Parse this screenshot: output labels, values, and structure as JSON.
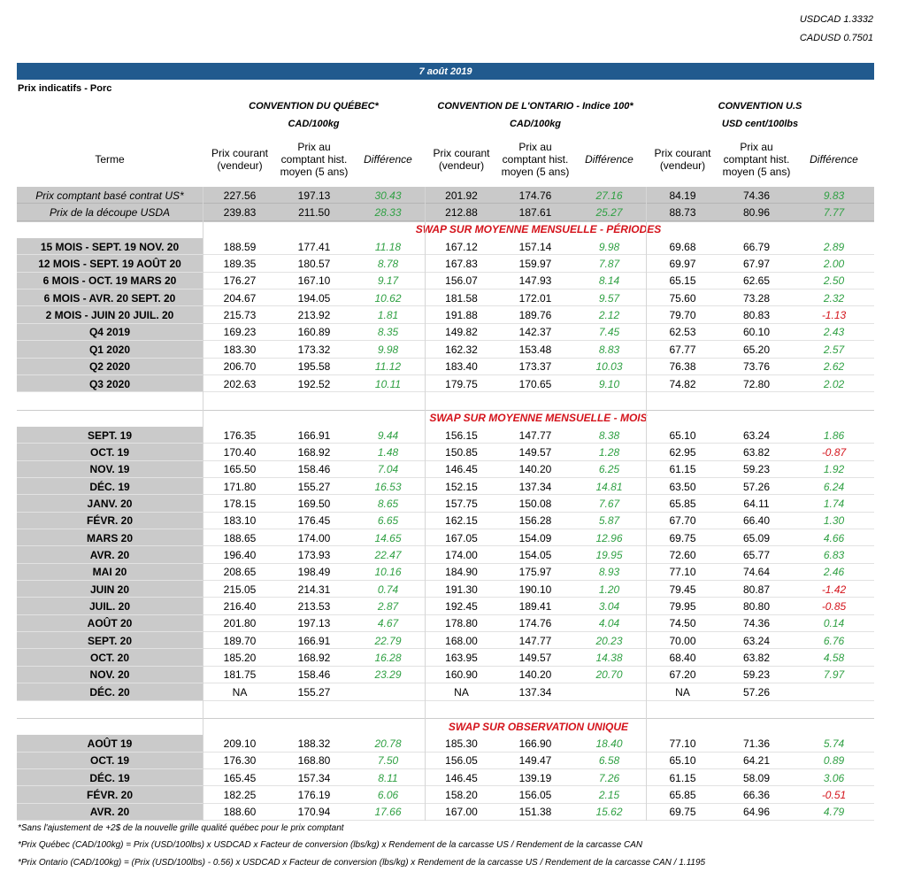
{
  "header": {
    "usdcad": "USDCAD 1.3332",
    "cadusd": "CADUSD 0.7501",
    "date": "7 août 2019",
    "subtitle": "Prix indicatifs - Porc"
  },
  "conventions": [
    {
      "name": "CONVENTION DU QUÉBEC*",
      "unit": "CAD/100kg"
    },
    {
      "name": "CONVENTION DE L'ONTARIO - Indice 100*",
      "unit": "CAD/100kg"
    },
    {
      "name": "CONVENTION U.S",
      "unit": "USD cent/100lbs"
    }
  ],
  "columns": [
    "Terme",
    "Prix courant (vendeur)",
    "Prix au comptant hist. moyen (5 ans)",
    "Différence",
    "Prix courant (vendeur)",
    "Prix au comptant hist. moyen (5 ans)",
    "Différence",
    "Prix courant (vendeur)",
    "Prix au comptant hist. moyen (5 ans)",
    "Différence"
  ],
  "sections": [
    {
      "rows": [
        [
          "Prix comptant basé contrat US*",
          "227.56",
          "197.13",
          "30.43",
          "201.92",
          "174.76",
          "27.16",
          "84.19",
          "74.36",
          "9.83"
        ],
        [
          "Prix de la découpe USDA",
          "239.83",
          "211.50",
          "28.33",
          "212.88",
          "187.61",
          "25.27",
          "88.73",
          "80.96",
          "7.77"
        ]
      ]
    },
    {
      "title": "SWAP SUR MOYENNE MENSUELLE - PÉRIODES",
      "rows": [
        [
          "15 MOIS -  SEPT. 19 NOV. 20",
          "188.59",
          "177.41",
          "11.18",
          "167.12",
          "157.14",
          "9.98",
          "69.68",
          "66.79",
          "2.89"
        ],
        [
          "12 MOIS -  SEPT. 19 AOÛT 20",
          "189.35",
          "180.57",
          "8.78",
          "167.83",
          "159.97",
          "7.87",
          "69.97",
          "67.97",
          "2.00"
        ],
        [
          "6 MOIS -  OCT. 19 MARS 20",
          "176.27",
          "167.10",
          "9.17",
          "156.07",
          "147.93",
          "8.14",
          "65.15",
          "62.65",
          "2.50"
        ],
        [
          "6 MOIS -  AVR. 20 SEPT. 20",
          "204.67",
          "194.05",
          "10.62",
          "181.58",
          "172.01",
          "9.57",
          "75.60",
          "73.28",
          "2.32"
        ],
        [
          "2 MOIS -  JUIN 20  JUIL. 20",
          "215.73",
          "213.92",
          "1.81",
          "191.88",
          "189.76",
          "2.12",
          "79.70",
          "80.83",
          "-1.13"
        ],
        [
          "Q4 2019",
          "169.23",
          "160.89",
          "8.35",
          "149.82",
          "142.37",
          "7.45",
          "62.53",
          "60.10",
          "2.43"
        ],
        [
          "Q1 2020",
          "183.30",
          "173.32",
          "9.98",
          "162.32",
          "153.48",
          "8.83",
          "67.77",
          "65.20",
          "2.57"
        ],
        [
          "Q2 2020",
          "206.70",
          "195.58",
          "11.12",
          "183.40",
          "173.37",
          "10.03",
          "76.38",
          "73.76",
          "2.62"
        ],
        [
          "Q3 2020",
          "202.63",
          "192.52",
          "10.11",
          "179.75",
          "170.65",
          "9.10",
          "74.82",
          "72.80",
          "2.02"
        ]
      ]
    },
    {
      "title": "SWAP SUR MOYENNE MENSUELLE - MOIS",
      "rows": [
        [
          "SEPT. 19",
          "176.35",
          "166.91",
          "9.44",
          "156.15",
          "147.77",
          "8.38",
          "65.10",
          "63.24",
          "1.86"
        ],
        [
          "OCT. 19",
          "170.40",
          "168.92",
          "1.48",
          "150.85",
          "149.57",
          "1.28",
          "62.95",
          "63.82",
          "-0.87"
        ],
        [
          "NOV. 19",
          "165.50",
          "158.46",
          "7.04",
          "146.45",
          "140.20",
          "6.25",
          "61.15",
          "59.23",
          "1.92"
        ],
        [
          "DÉC. 19",
          "171.80",
          "155.27",
          "16.53",
          "152.15",
          "137.34",
          "14.81",
          "63.50",
          "57.26",
          "6.24"
        ],
        [
          "JANV. 20",
          "178.15",
          "169.50",
          "8.65",
          "157.75",
          "150.08",
          "7.67",
          "65.85",
          "64.11",
          "1.74"
        ],
        [
          "FÉVR. 20",
          "183.10",
          "176.45",
          "6.65",
          "162.15",
          "156.28",
          "5.87",
          "67.70",
          "66.40",
          "1.30"
        ],
        [
          "MARS 20",
          "188.65",
          "174.00",
          "14.65",
          "167.05",
          "154.09",
          "12.96",
          "69.75",
          "65.09",
          "4.66"
        ],
        [
          "AVR. 20",
          "196.40",
          "173.93",
          "22.47",
          "174.00",
          "154.05",
          "19.95",
          "72.60",
          "65.77",
          "6.83"
        ],
        [
          "MAI 20",
          "208.65",
          "198.49",
          "10.16",
          "184.90",
          "175.97",
          "8.93",
          "77.10",
          "74.64",
          "2.46"
        ],
        [
          "JUIN 20",
          "215.05",
          "214.31",
          "0.74",
          "191.30",
          "190.10",
          "1.20",
          "79.45",
          "80.87",
          "-1.42"
        ],
        [
          "JUIL. 20",
          "216.40",
          "213.53",
          "2.87",
          "192.45",
          "189.41",
          "3.04",
          "79.95",
          "80.80",
          "-0.85"
        ],
        [
          "AOÛT 20",
          "201.80",
          "197.13",
          "4.67",
          "178.80",
          "174.76",
          "4.04",
          "74.50",
          "74.36",
          "0.14"
        ],
        [
          "SEPT. 20",
          "189.70",
          "166.91",
          "22.79",
          "168.00",
          "147.77",
          "20.23",
          "70.00",
          "63.24",
          "6.76"
        ],
        [
          "OCT. 20",
          "185.20",
          "168.92",
          "16.28",
          "163.95",
          "149.57",
          "14.38",
          "68.40",
          "63.82",
          "4.58"
        ],
        [
          "NOV. 20",
          "181.75",
          "158.46",
          "23.29",
          "160.90",
          "140.20",
          "20.70",
          "67.20",
          "59.23",
          "7.97"
        ],
        [
          "DÉC. 20",
          "NA",
          "155.27",
          null,
          "NA",
          "137.34",
          null,
          "NA",
          "57.26",
          null
        ]
      ]
    },
    {
      "title": "SWAP SUR OBSERVATION UNIQUE",
      "rows": [
        [
          "AOÛT 19",
          "209.10",
          "188.32",
          "20.78",
          "185.30",
          "166.90",
          "18.40",
          "77.10",
          "71.36",
          "5.74"
        ],
        [
          "OCT. 19",
          "176.30",
          "168.80",
          "7.50",
          "156.05",
          "149.47",
          "6.58",
          "65.10",
          "64.21",
          "0.89"
        ],
        [
          "DÉC. 19",
          "165.45",
          "157.34",
          "8.11",
          "146.45",
          "139.19",
          "7.26",
          "61.15",
          "58.09",
          "3.06"
        ],
        [
          "FÉVR. 20",
          "182.25",
          "176.19",
          "6.06",
          "158.20",
          "156.05",
          "2.15",
          "65.85",
          "66.36",
          "-0.51"
        ],
        [
          "AVR. 20",
          "188.60",
          "170.94",
          "17.66",
          "167.00",
          "151.38",
          "15.62",
          "69.75",
          "64.96",
          "4.79"
        ]
      ]
    }
  ],
  "footnotes": [
    "*Sans l'ajustement de +2$ de la nouvelle grille qualité québec pour le prix comptant",
    "*Prix Québec (CAD/100kg) = Prix (USD/100lbs) x USDCAD x Facteur de conversion (lbs/kg) x Rendement de la carcasse US / Rendement de la carcasse CAN",
    "*Prix Ontario (CAD/100kg) = (Prix (USD/100lbs) - 0.56) x USDCAD x Facteur de conversion (lbs/kg) x Rendement de la carcasse US / Rendement de la carcasse CAN / 1.1195"
  ]
}
